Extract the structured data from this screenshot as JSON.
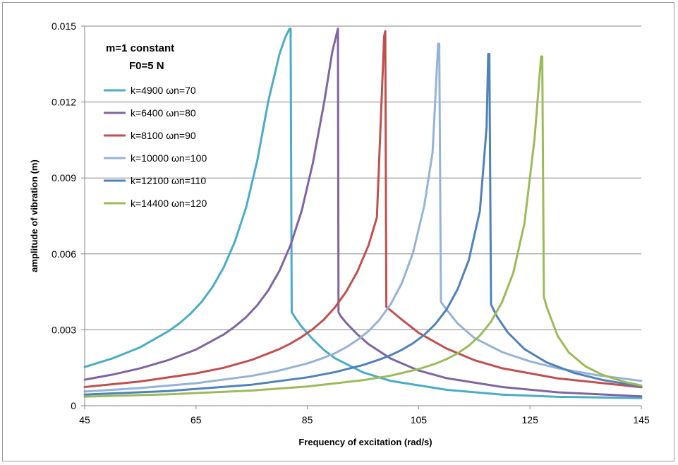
{
  "chart_data": {
    "type": "line",
    "title": "",
    "xlabel": "Frequency of excitation (rad/s)",
    "ylabel": "amplitude of vibration (m)",
    "xlim": [
      45,
      145
    ],
    "ylim": [
      0,
      0.015
    ],
    "xticks": [
      45,
      65,
      85,
      105,
      125,
      145
    ],
    "yticks": [
      0,
      0.003,
      0.006,
      0.009,
      0.012,
      0.015
    ],
    "xtick_labels": [
      "45",
      "65",
      "85",
      "105",
      "125",
      "145"
    ],
    "ytick_labels": [
      "0",
      "0.003",
      "0.006",
      "0.009",
      "0.012",
      "0.015"
    ],
    "grid": "horizontal",
    "annotations": [
      "m=1 constant",
      "F0=5 N"
    ],
    "legend_position": "top-left",
    "series": [
      {
        "name": "k=4900 ωn=70",
        "omega_n": 70,
        "color": "#4BACC6",
        "x": [
          45,
          50,
          55,
          60,
          62,
          64,
          66,
          68,
          70,
          72,
          74,
          76,
          78,
          80,
          81,
          81.8,
          82,
          82.2,
          83,
          84,
          86,
          88,
          90,
          95,
          100,
          110,
          120,
          130,
          145
        ],
        "y": [
          0.00153,
          0.00187,
          0.00231,
          0.00294,
          0.00325,
          0.00363,
          0.0041,
          0.0047,
          0.00548,
          0.00649,
          0.00783,
          0.00968,
          0.01205,
          0.01389,
          0.01453,
          0.0149,
          0.0149,
          0.0037,
          0.00342,
          0.00312,
          0.00262,
          0.0022,
          0.00187,
          0.00132,
          0.00098,
          0.00063,
          0.00044,
          0.00035,
          0.0003
        ]
      },
      {
        "name": "k=6400 ωn=80",
        "omega_n": 80,
        "color": "#8064A2",
        "x": [
          45,
          50,
          55,
          60,
          65,
          70,
          72,
          74,
          76,
          78,
          80,
          82,
          84,
          86,
          88,
          89.5,
          90.5,
          90.6,
          91,
          92,
          94,
          96,
          100,
          105,
          110,
          120,
          130,
          145
        ],
        "y": [
          0.00103,
          0.00123,
          0.00148,
          0.0018,
          0.00222,
          0.00282,
          0.00313,
          0.0035,
          0.00397,
          0.00456,
          0.00533,
          0.00635,
          0.00771,
          0.0096,
          0.01196,
          0.014,
          0.0149,
          0.0037,
          0.00354,
          0.00327,
          0.00282,
          0.00243,
          0.00186,
          0.00139,
          0.00109,
          0.00074,
          0.00053,
          0.00037
        ]
      },
      {
        "name": "k=8100 ωn=90",
        "omega_n": 90,
        "color": "#C0504D",
        "x": [
          45,
          55,
          65,
          70,
          75,
          80,
          82,
          84,
          86,
          88,
          90,
          92,
          94,
          96,
          97.5,
          98.8,
          99,
          99.2,
          100,
          102,
          105,
          110,
          115,
          120,
          130,
          145
        ],
        "y": [
          0.00074,
          0.00096,
          0.00128,
          0.0015,
          0.00181,
          0.00224,
          0.00246,
          0.00272,
          0.00303,
          0.00341,
          0.0039,
          0.00451,
          0.0053,
          0.00634,
          0.00744,
          0.0146,
          0.0148,
          0.0039,
          0.00376,
          0.0034,
          0.00288,
          0.00226,
          0.0018,
          0.00148,
          0.00108,
          0.00073
        ]
      },
      {
        "name": "k=10000 ωn=100",
        "omega_n": 100,
        "color": "#95B3D7",
        "x": [
          45,
          55,
          65,
          75,
          80,
          85,
          88,
          90,
          92,
          94,
          96,
          98,
          100,
          102,
          104,
          106,
          107.5,
          108.5,
          108.7,
          109,
          110,
          112,
          115,
          120,
          125,
          130,
          137,
          145
        ],
        "y": [
          0.00056,
          0.0007,
          0.00089,
          0.00118,
          0.00139,
          0.00167,
          0.0019,
          0.00208,
          0.00231,
          0.0026,
          0.00295,
          0.00341,
          0.00402,
          0.00485,
          0.00605,
          0.0079,
          0.01,
          0.0143,
          0.0143,
          0.0041,
          0.0038,
          0.00325,
          0.00268,
          0.00212,
          0.00175,
          0.00148,
          0.00121,
          0.00098
        ]
      },
      {
        "name": "k=12100 ωn=110",
        "omega_n": 110,
        "color": "#4F81BD",
        "x": [
          45,
          60,
          75,
          85,
          90,
          95,
          98,
          100,
          102,
          104,
          106,
          108,
          110,
          112,
          114,
          116,
          117.2,
          117.5,
          117.7,
          118,
          119,
          121,
          124,
          128,
          133,
          138,
          145
        ],
        "y": [
          0.00044,
          0.00058,
          0.00083,
          0.00112,
          0.00133,
          0.00161,
          0.00183,
          0.002,
          0.00221,
          0.00247,
          0.0028,
          0.00323,
          0.0038,
          0.0046,
          0.00575,
          0.0077,
          0.011,
          0.0139,
          0.0139,
          0.004,
          0.00355,
          0.0029,
          0.00224,
          0.00171,
          0.00129,
          0.00102,
          0.00076
        ]
      },
      {
        "name": "k=14400 ωn=120",
        "omega_n": 120,
        "color": "#9BBB59",
        "x": [
          45,
          60,
          75,
          85,
          95,
          100,
          105,
          108,
          110,
          112,
          114,
          116,
          118,
          120,
          122,
          124,
          125.8,
          127,
          127.2,
          127.5,
          128,
          130,
          132,
          135,
          138,
          142,
          145
        ],
        "y": [
          0.00036,
          0.00045,
          0.0006,
          0.00076,
          0.00101,
          0.00119,
          0.00145,
          0.00166,
          0.00184,
          0.00207,
          0.00237,
          0.00277,
          0.00332,
          0.0041,
          0.00525,
          0.0072,
          0.0105,
          0.0138,
          0.0138,
          0.0043,
          0.0039,
          0.00275,
          0.0021,
          0.00155,
          0.00122,
          0.00094,
          0.0008
        ]
      }
    ]
  }
}
